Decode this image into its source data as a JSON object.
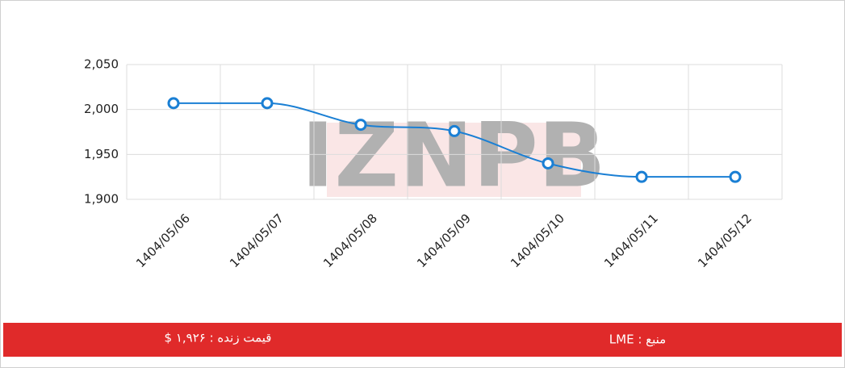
{
  "chart_data": {
    "type": "line",
    "watermark": "IZNPB",
    "categories": [
      "1404/05/06",
      "1404/05/07",
      "1404/05/08",
      "1404/05/09",
      "1404/05/10",
      "1404/05/11",
      "1404/05/12"
    ],
    "series": [
      {
        "color": "#1a7fd4",
        "values": [
          2007,
          2007,
          1983,
          1976,
          1940,
          1925,
          1925
        ]
      }
    ],
    "ylim": [
      1900,
      2050
    ],
    "yticks": [
      {
        "value": 1900,
        "label": "1,900"
      },
      {
        "value": 1950,
        "label": "1,950"
      },
      {
        "value": 2000,
        "label": "2,000"
      },
      {
        "value": 2050,
        "label": "2,050"
      }
    ],
    "grid": true
  },
  "footer": {
    "color": "#e02a2a",
    "source": "منبع : LME",
    "live_price": "قیمت زنده : ۱,۹۲۶ $"
  }
}
